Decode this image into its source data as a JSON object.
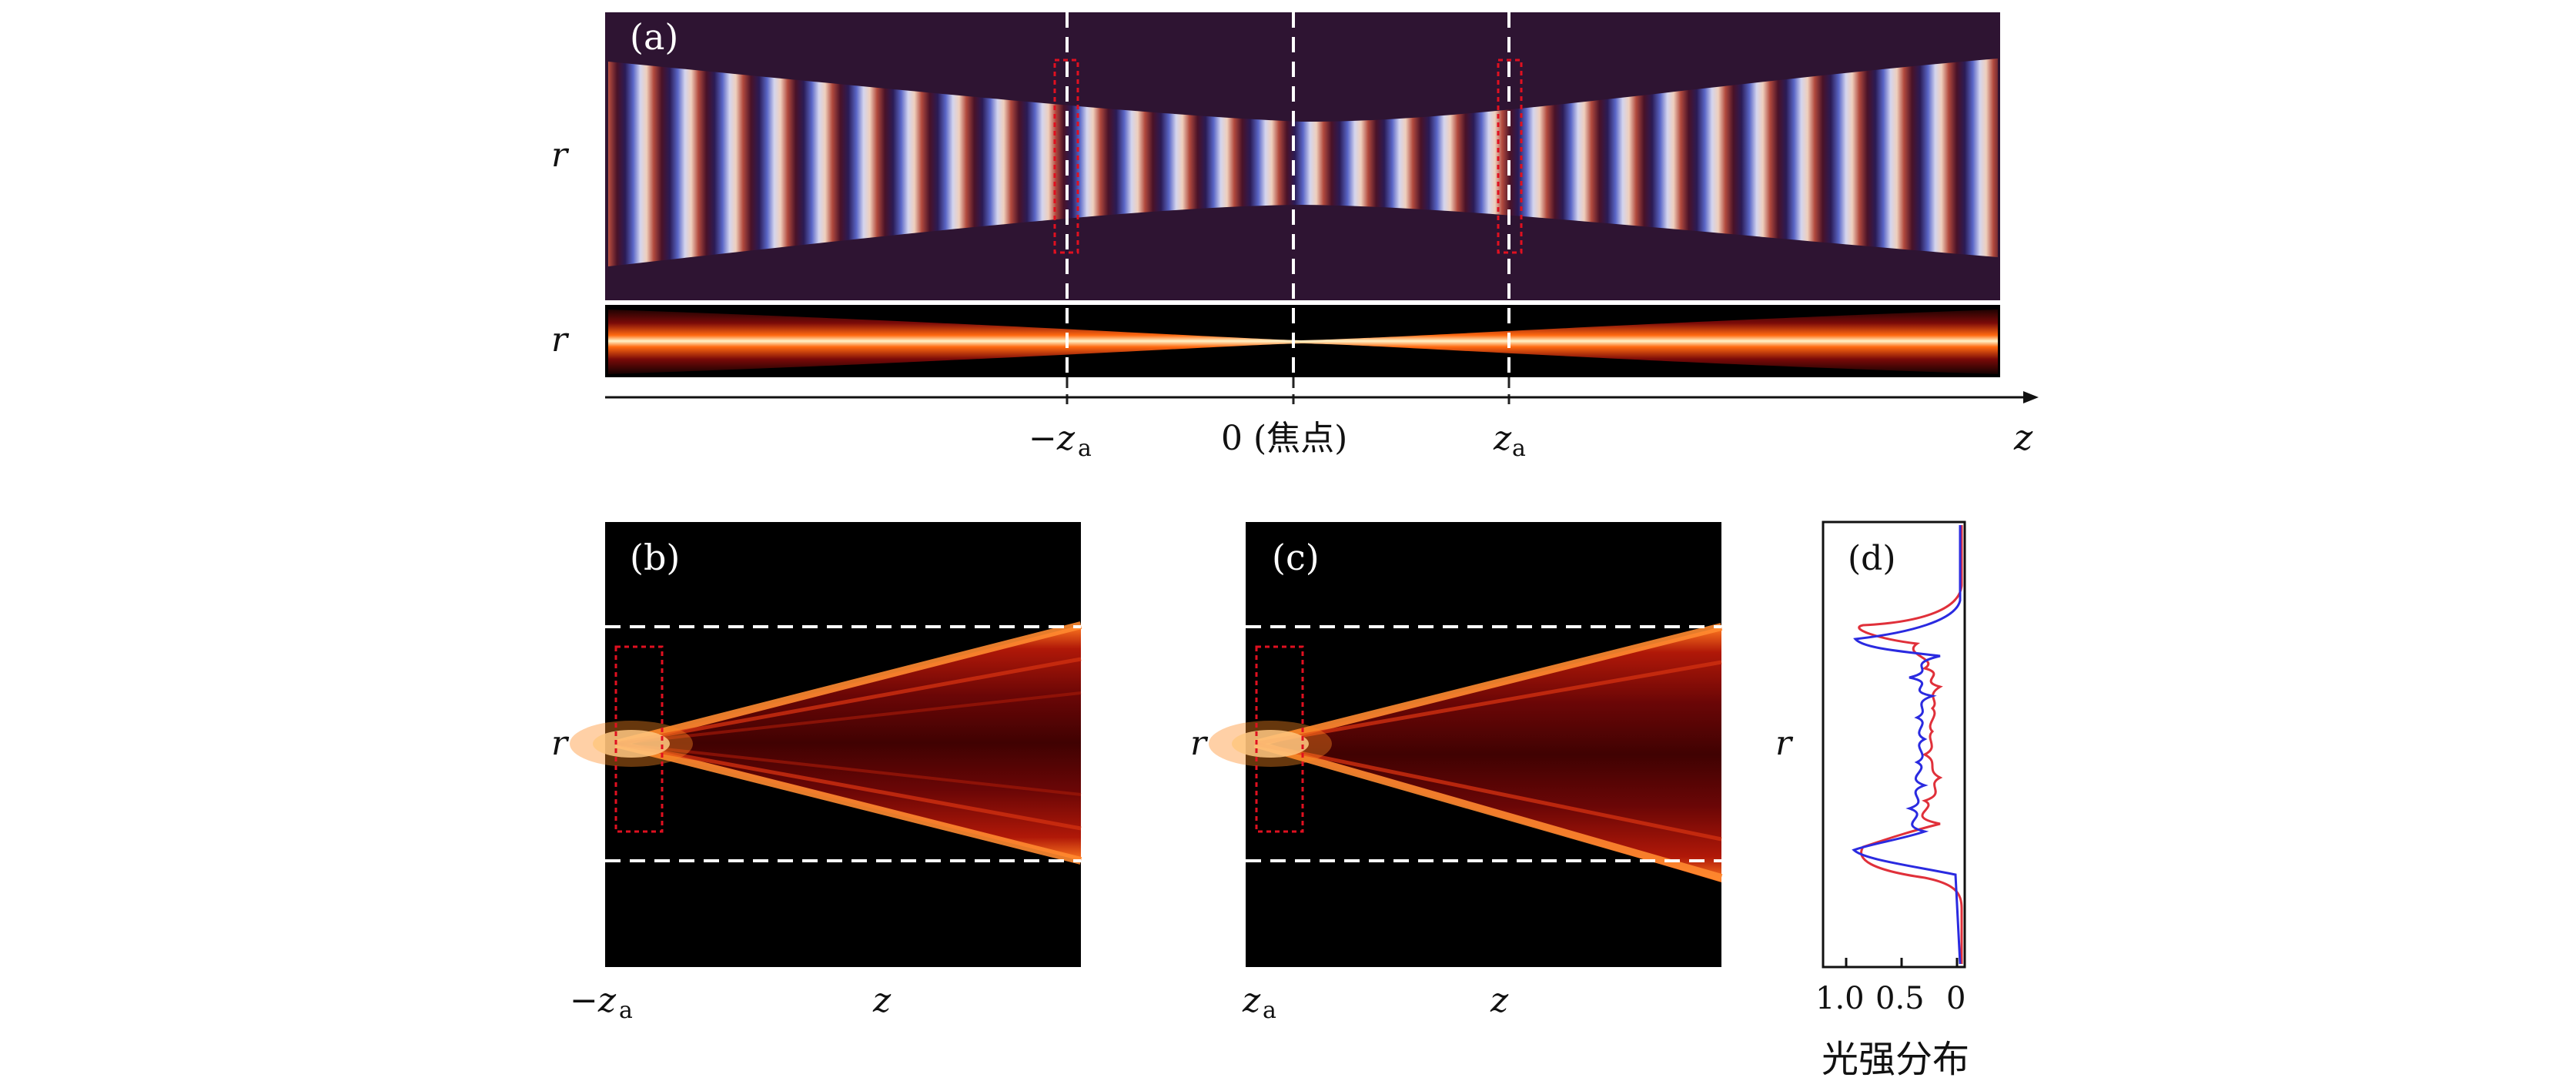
{
  "panels": {
    "a": {
      "tag": "(a)",
      "axis_r": "r",
      "axis_z": "z",
      "tick_neg_za": "−z",
      "tick_zero": "0 (焦点)",
      "tick_pos_za": "z",
      "subscript": "a"
    },
    "b": {
      "tag": "(b)",
      "axis_r": "r",
      "axis_z": "z",
      "tick_left": "−z",
      "subscript": "a"
    },
    "c": {
      "tag": "(c)",
      "axis_r": "r",
      "axis_z": "z",
      "tick_left": "z",
      "subscript": "a"
    },
    "d": {
      "tag": "(d)",
      "axis_r": "r",
      "ticks": [
        "1.0",
        "0.5",
        "0"
      ],
      "xlabel": "光强分布",
      "colors": {
        "red": "#e0303a",
        "blue": "#2a2ae0"
      }
    }
  },
  "colors": {
    "dark_bg": "#2e1432",
    "beam_core": "#fff0c0",
    "beam_mid": "#ff7a1a",
    "beam_edge": "#a01010",
    "marker": "#e01020"
  }
}
